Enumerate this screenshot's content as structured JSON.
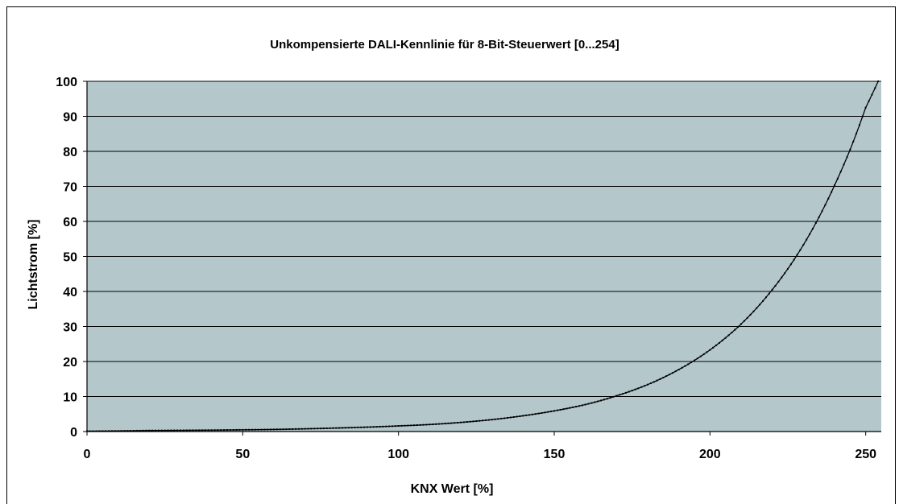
{
  "chart_data": {
    "type": "line",
    "title": "Unkompensierte DALI-Kennlinie für 8-Bit-Steuerwert [0...254]",
    "xlabel": "KNX Wert [%]",
    "ylabel": "Lichtstrom [%]",
    "xlim": [
      0,
      255
    ],
    "ylim": [
      0,
      100
    ],
    "x_ticks": [
      "0",
      "50",
      "100",
      "150",
      "200",
      "250"
    ],
    "y_ticks": [
      "0",
      "10",
      "20",
      "30",
      "40",
      "50",
      "60",
      "70",
      "80",
      "90",
      "100"
    ],
    "grid": "horizontal",
    "legend": "none",
    "plot_background": "#b4c8cc",
    "line_color": "#000000",
    "marker": "small-square",
    "series": [
      {
        "x": [
          0,
          20,
          40,
          60,
          80,
          100,
          110,
          120,
          130,
          140,
          150,
          160,
          170,
          180,
          190,
          200,
          210,
          220,
          230,
          240,
          245,
          250,
          254
        ],
        "values": [
          0.1,
          0.3,
          0.4,
          0.6,
          1.0,
          1.6,
          2.0,
          2.6,
          3.4,
          4.5,
          5.9,
          7.7,
          10.2,
          13.4,
          17.7,
          23.3,
          30.7,
          40.5,
          53.3,
          70.3,
          80.5,
          92.5,
          100
        ]
      }
    ]
  }
}
